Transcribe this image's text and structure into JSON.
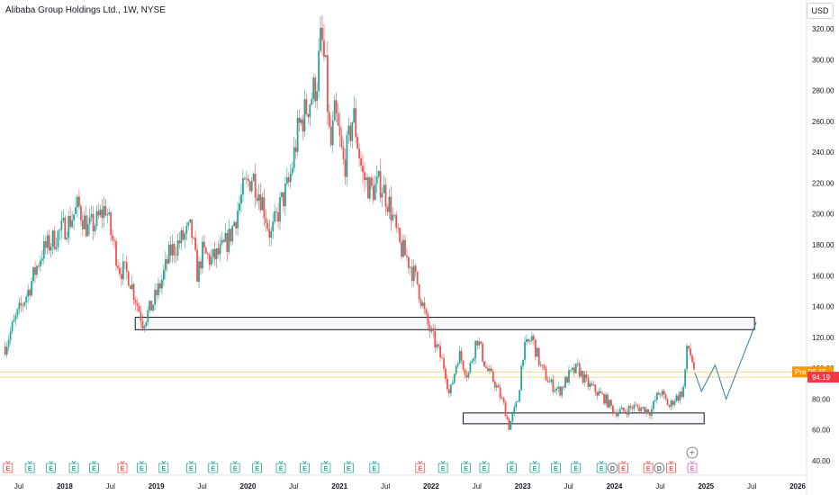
{
  "header": {
    "title": "Alibaba Group Holdings Ltd., 1W, NYSE",
    "currency": "USD"
  },
  "colors": {
    "up": "#26a69a",
    "down": "#ef5350",
    "line": "#2f7ea8",
    "box": "#131722",
    "price_line": "#ff9800",
    "last_price_bg": "#f23645"
  },
  "chart_data": {
    "type": "candlestick",
    "title": "Alibaba Group Holdings Ltd., 1W, NYSE",
    "ylabel": "USD",
    "ylim": [
      35,
      325
    ],
    "yticks": [
      40,
      60,
      80,
      100,
      120,
      140,
      160,
      180,
      200,
      220,
      240,
      260,
      280,
      300,
      320
    ],
    "ytick_labels": [
      "40.00",
      "60.00",
      "80.00",
      "100.00",
      "120.00",
      "140.00",
      "160.00",
      "180.00",
      "200.00",
      "220.00",
      "240.00",
      "260.00",
      "280.00",
      "300.00",
      "320.00"
    ],
    "xlim": [
      2017.35,
      2026.6
    ],
    "xticks": [
      {
        "x": 2017.5,
        "label": "Jul"
      },
      {
        "x": 2018.0,
        "label": "2018"
      },
      {
        "x": 2018.5,
        "label": "Jul"
      },
      {
        "x": 2019.0,
        "label": "2019"
      },
      {
        "x": 2019.5,
        "label": "Jul"
      },
      {
        "x": 2020.0,
        "label": "2020"
      },
      {
        "x": 2020.5,
        "label": "Jul"
      },
      {
        "x": 2021.0,
        "label": "2021"
      },
      {
        "x": 2021.5,
        "label": "Jul"
      },
      {
        "x": 2022.0,
        "label": "2022"
      },
      {
        "x": 2022.5,
        "label": "Jul"
      },
      {
        "x": 2023.0,
        "label": "2023"
      },
      {
        "x": 2023.5,
        "label": "Jul"
      },
      {
        "x": 2024.0,
        "label": "2024"
      },
      {
        "x": 2024.5,
        "label": "Jul"
      },
      {
        "x": 2025.0,
        "label": "2025"
      },
      {
        "x": 2025.5,
        "label": "Jul"
      },
      {
        "x": 2026.0,
        "label": "2026"
      }
    ],
    "price_path": [
      [
        2017.35,
        114
      ],
      [
        2017.45,
        130
      ],
      [
        2017.6,
        150
      ],
      [
        2017.75,
        175
      ],
      [
        2017.9,
        185
      ],
      [
        2018.05,
        195
      ],
      [
        2018.15,
        205
      ],
      [
        2018.25,
        190
      ],
      [
        2018.35,
        195
      ],
      [
        2018.45,
        205
      ],
      [
        2018.5,
        188
      ],
      [
        2018.6,
        165
      ],
      [
        2018.7,
        160
      ],
      [
        2018.8,
        140
      ],
      [
        2018.85,
        130
      ],
      [
        2018.95,
        140
      ],
      [
        2019.05,
        155
      ],
      [
        2019.15,
        175
      ],
      [
        2019.3,
        185
      ],
      [
        2019.38,
        190
      ],
      [
        2019.45,
        160
      ],
      [
        2019.5,
        175
      ],
      [
        2019.6,
        170
      ],
      [
        2019.7,
        175
      ],
      [
        2019.8,
        185
      ],
      [
        2019.95,
        215
      ],
      [
        2020.05,
        225
      ],
      [
        2020.15,
        210
      ],
      [
        2020.25,
        185
      ],
      [
        2020.35,
        205
      ],
      [
        2020.45,
        220
      ],
      [
        2020.55,
        255
      ],
      [
        2020.65,
        270
      ],
      [
        2020.75,
        285
      ],
      [
        2020.8,
        315
      ],
      [
        2020.85,
        290
      ],
      [
        2020.9,
        240
      ],
      [
        2020.95,
        265
      ],
      [
        2021.05,
        230
      ],
      [
        2021.15,
        265
      ],
      [
        2021.25,
        225
      ],
      [
        2021.35,
        215
      ],
      [
        2021.45,
        220
      ],
      [
        2021.55,
        205
      ],
      [
        2021.65,
        180
      ],
      [
        2021.75,
        170
      ],
      [
        2021.85,
        155
      ],
      [
        2021.95,
        130
      ],
      [
        2022.05,
        115
      ],
      [
        2022.15,
        100
      ],
      [
        2022.2,
        82
      ],
      [
        2022.3,
        110
      ],
      [
        2022.4,
        95
      ],
      [
        2022.5,
        120
      ],
      [
        2022.6,
        100
      ],
      [
        2022.7,
        90
      ],
      [
        2022.8,
        75
      ],
      [
        2022.85,
        62
      ],
      [
        2022.95,
        80
      ],
      [
        2023.0,
        110
      ],
      [
        2023.1,
        120
      ],
      [
        2023.2,
        100
      ],
      [
        2023.3,
        90
      ],
      [
        2023.4,
        85
      ],
      [
        2023.5,
        95
      ],
      [
        2023.6,
        100
      ],
      [
        2023.7,
        90
      ],
      [
        2023.8,
        85
      ],
      [
        2023.9,
        80
      ],
      [
        2024.0,
        72
      ],
      [
        2024.1,
        72
      ],
      [
        2024.2,
        75
      ],
      [
        2024.3,
        74
      ],
      [
        2024.4,
        72
      ],
      [
        2024.45,
        80
      ],
      [
        2024.5,
        85
      ],
      [
        2024.6,
        75
      ],
      [
        2024.65,
        80
      ],
      [
        2024.7,
        82
      ],
      [
        2024.75,
        85
      ],
      [
        2024.8,
        115
      ],
      [
        2024.85,
        105
      ],
      [
        2024.88,
        97
      ]
    ],
    "last_price": "94.19",
    "reference_price_label": "Pre 96.45",
    "zones": [
      {
        "x0": 2018.77,
        "x1": 2025.53,
        "y0": 125,
        "y1": 133
      },
      {
        "x0": 2022.35,
        "x1": 2024.98,
        "y0": 64,
        "y1": 71
      }
    ],
    "projection": [
      [
        2024.88,
        97
      ],
      [
        2024.95,
        85
      ],
      [
        2025.1,
        102
      ],
      [
        2025.22,
        80
      ],
      [
        2025.55,
        130
      ]
    ],
    "events": [
      {
        "x": 2017.38,
        "label": "E",
        "kind": "earnings-red"
      },
      {
        "x": 2017.62,
        "label": "E",
        "kind": "earnings-green"
      },
      {
        "x": 2017.85,
        "label": "E",
        "kind": "earnings-green"
      },
      {
        "x": 2018.1,
        "label": "E",
        "kind": "earnings-green"
      },
      {
        "x": 2018.32,
        "label": "E",
        "kind": "earnings-green"
      },
      {
        "x": 2018.63,
        "label": "E",
        "kind": "earnings-red"
      },
      {
        "x": 2018.84,
        "label": "E",
        "kind": "earnings-green"
      },
      {
        "x": 2019.08,
        "label": "E",
        "kind": "earnings-green"
      },
      {
        "x": 2019.38,
        "label": "E",
        "kind": "earnings-green"
      },
      {
        "x": 2019.62,
        "label": "E",
        "kind": "earnings-green"
      },
      {
        "x": 2019.86,
        "label": "E",
        "kind": "earnings-green"
      },
      {
        "x": 2020.1,
        "label": "E",
        "kind": "earnings-green"
      },
      {
        "x": 2020.36,
        "label": "E",
        "kind": "earnings-green"
      },
      {
        "x": 2020.62,
        "label": "E",
        "kind": "earnings-green"
      },
      {
        "x": 2020.85,
        "label": "E",
        "kind": "earnings-green"
      },
      {
        "x": 2021.1,
        "label": "E",
        "kind": "earnings-green"
      },
      {
        "x": 2021.38,
        "label": "E",
        "kind": "earnings-green"
      },
      {
        "x": 2021.88,
        "label": "E",
        "kind": "earnings-red"
      },
      {
        "x": 2022.13,
        "label": "E",
        "kind": "earnings-green"
      },
      {
        "x": 2022.38,
        "label": "E",
        "kind": "earnings-green"
      },
      {
        "x": 2022.58,
        "label": "E",
        "kind": "earnings-green"
      },
      {
        "x": 2022.88,
        "label": "E",
        "kind": "earnings-green"
      },
      {
        "x": 2023.13,
        "label": "E",
        "kind": "earnings-green"
      },
      {
        "x": 2023.36,
        "label": "E",
        "kind": "earnings-green"
      },
      {
        "x": 2023.58,
        "label": "E",
        "kind": "earnings-green"
      },
      {
        "x": 2023.86,
        "label": "E",
        "kind": "earnings-green"
      },
      {
        "x": 2023.98,
        "label": "D",
        "kind": "dividend"
      },
      {
        "x": 2024.1,
        "label": "E",
        "kind": "earnings-red"
      },
      {
        "x": 2024.37,
        "label": "E",
        "kind": "earnings-red"
      },
      {
        "x": 2024.49,
        "label": "D",
        "kind": "dividend"
      },
      {
        "x": 2024.62,
        "label": "E",
        "kind": "earnings-red"
      },
      {
        "x": 2024.85,
        "label": "E",
        "kind": "earnings-future"
      }
    ],
    "add_event_symbol": "+"
  }
}
